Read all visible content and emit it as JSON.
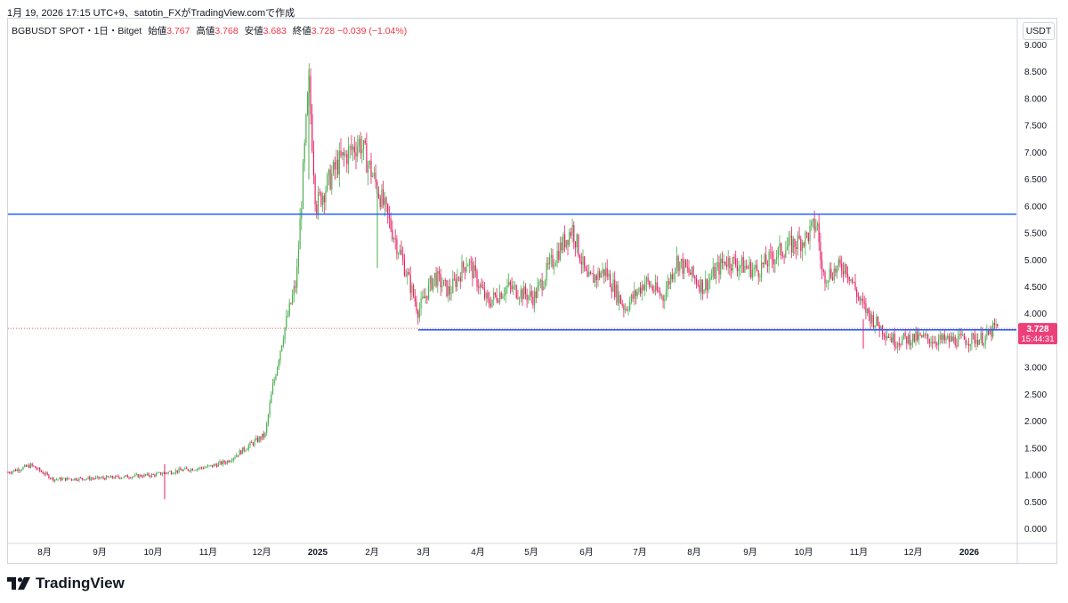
{
  "header": {
    "caption": "1月 19, 2026 17:15 UTC+9、satotin_FXがTradingView.comで作成"
  },
  "legend": {
    "symbol": "BGBUSDT SPOT・1日・Bitget",
    "open_label": "始値",
    "open": "3.767",
    "high_label": "高値",
    "high": "3.768",
    "low_label": "安値",
    "low": "3.683",
    "close_label": "終値",
    "close": "3.728",
    "change": "−0.039 (−1.04%)"
  },
  "price_axis": {
    "unit": "USDT"
  },
  "last_price": {
    "price": "3.728",
    "countdown": "15:44:31"
  },
  "brand": {
    "name": "TradingView"
  },
  "colors": {
    "up": "#089981",
    "up_candle": "#4caf50",
    "down": "#f23645",
    "down_candle": "#e91e63",
    "hline": "#2962ff",
    "price_tag": "#ec407a",
    "grid": "#f0f3fa",
    "axis_text": "#787b86"
  },
  "chart_data": {
    "type": "candlestick",
    "ylim": [
      -0.1,
      9.15
    ],
    "yticks": [
      "9.000",
      "8.500",
      "8.000",
      "7.500",
      "7.000",
      "6.500",
      "6.000",
      "5.500",
      "5.000",
      "4.500",
      "4.000",
      "3.500",
      "3.000",
      "2.500",
      "2.000",
      "1.500",
      "1.000",
      "0.500",
      "0.000"
    ],
    "xticks": [
      "8月",
      "9月",
      "10月",
      "11月",
      "12月",
      "2025",
      "2月",
      "3月",
      "4月",
      "5月",
      "6月",
      "7月",
      "8月",
      "9月",
      "10月",
      "11月",
      "12月",
      "2026"
    ],
    "series": [
      {
        "name": "BGBUSDT",
        "path_points": [
          [
            "7月 中旬",
            1.05
          ],
          [
            "7月 末",
            1.18
          ],
          [
            "8月",
            0.92
          ],
          [
            "9月",
            0.94
          ],
          [
            "10月",
            1.0
          ],
          [
            "10月 中旬",
            1.08
          ],
          [
            "11月",
            1.15
          ],
          [
            "11月 中旬",
            1.25
          ],
          [
            "12月",
            1.55
          ],
          [
            "12月 中旬",
            1.75
          ],
          [
            "12月 末",
            2.6
          ],
          [
            "12月 後半",
            3.6
          ],
          [
            "2024末",
            4.6
          ],
          [
            "2025",
            8.3
          ],
          [
            "2025 1月上旬",
            6.0
          ],
          [
            "1月 中旬",
            6.8
          ],
          [
            "2月",
            7.2
          ],
          [
            "2月 中旬",
            6.3
          ],
          [
            "2月 下旬",
            5.0
          ],
          [
            "3月",
            4.05
          ],
          [
            "3月 上旬",
            4.7
          ],
          [
            "3月 中旬",
            4.4
          ],
          [
            "3月 下旬",
            5.0
          ],
          [
            "4月",
            4.2
          ],
          [
            "4月 中旬",
            4.5
          ],
          [
            "5月",
            4.3
          ],
          [
            "5月 中旬",
            4.9
          ],
          [
            "5月 下旬",
            5.6
          ],
          [
            "6月",
            4.6
          ],
          [
            "6月 中旬",
            4.8
          ],
          [
            "7月",
            4.1
          ],
          [
            "7月 中旬",
            4.6
          ],
          [
            "8月",
            4.3
          ],
          [
            "8月 中旬",
            5.0
          ],
          [
            "9月",
            4.5
          ],
          [
            "9月 中旬",
            5.0
          ],
          [
            "10月",
            5.4
          ],
          [
            "10月 上旬",
            5.7
          ],
          [
            "10月 中旬",
            4.7
          ],
          [
            "10月 下旬",
            4.9
          ],
          [
            "11月",
            4.2
          ],
          [
            "11月 上旬",
            3.9
          ],
          [
            "11月 中旬",
            3.5
          ],
          [
            "12月",
            3.55
          ],
          [
            "12月 中旬",
            3.5
          ],
          [
            "2026",
            3.55
          ],
          [
            "2026 1月中旬",
            3.73
          ]
        ]
      }
    ],
    "horizontal_lines": [
      {
        "value": 5.85,
        "color": "#2962ff",
        "from": "start"
      },
      {
        "value": 3.7,
        "color": "#2962ff",
        "from": "3月"
      }
    ],
    "last_close": 3.728,
    "grid": false,
    "legend_position": "top-left"
  }
}
